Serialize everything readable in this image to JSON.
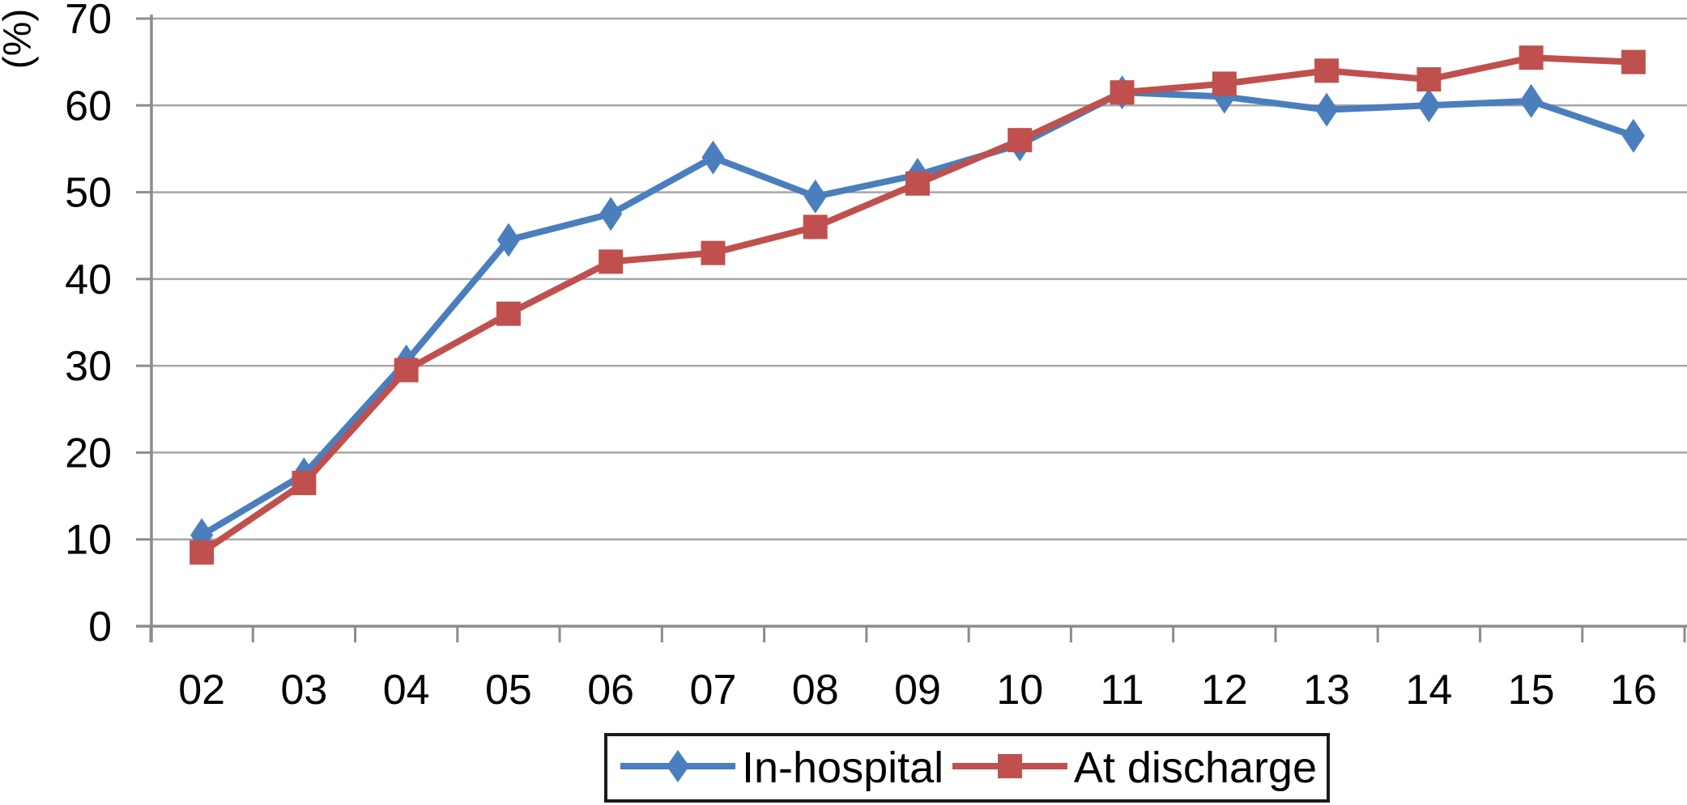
{
  "chart_data": {
    "type": "line",
    "title": "",
    "xlabel": "",
    "ylabel": "(%)",
    "categories": [
      "02",
      "03",
      "04",
      "05",
      "06",
      "07",
      "08",
      "09",
      "10",
      "11",
      "12",
      "13",
      "14",
      "15",
      "16"
    ],
    "ylim": [
      0,
      70
    ],
    "yticks": [
      0,
      10,
      20,
      30,
      40,
      50,
      60,
      70
    ],
    "grid": "horizontal",
    "legend_position": "bottom-center",
    "series": [
      {
        "name": "In-hospital",
        "marker": "diamond",
        "color": "#4a7ebd",
        "values": [
          10.5,
          17.5,
          30.5,
          44.5,
          47.5,
          54,
          49.5,
          52,
          55.5,
          61.5,
          61,
          59.5,
          60,
          60.5,
          56.5
        ]
      },
      {
        "name": "At discharge",
        "marker": "square",
        "color": "#c0504d",
        "values": [
          8.5,
          16.5,
          29.5,
          36,
          42,
          43,
          46,
          51,
          56,
          61.5,
          62.5,
          64,
          63,
          65.5,
          65
        ]
      }
    ],
    "colors": {
      "grid": "#a6a6a6",
      "axis": "#8c8c8c",
      "text": "#000000",
      "legend_border": "#1a1a1a",
      "background": "#ffffff"
    }
  }
}
